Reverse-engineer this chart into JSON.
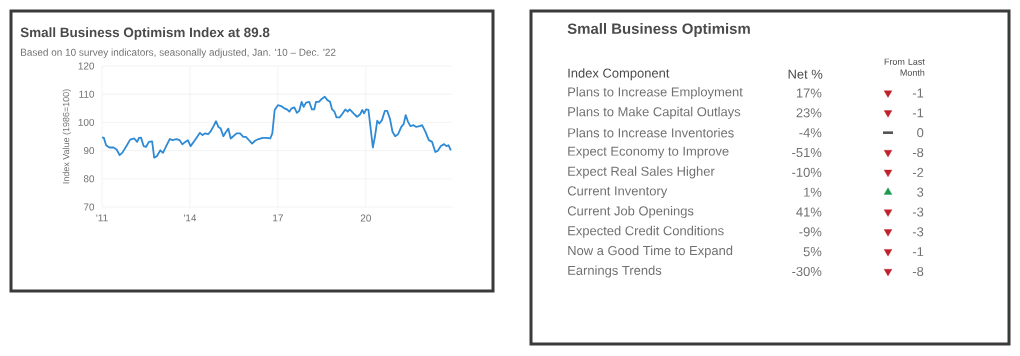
{
  "chart_data": [
    {
      "type": "line",
      "title": "Small Business Optimism Index at 89.8",
      "subtitle": "Based on 10 survey indicators, seasonally adjusted, Jan. '10 – Dec. '22",
      "ylabel": "Index Value (1986=100)",
      "color": "#2f8ad6",
      "x": [
        2011.0,
        2011.06,
        2011.14,
        2011.25,
        2011.39,
        2011.5,
        2011.6,
        2011.69,
        2011.85,
        2011.96,
        2012.1,
        2012.2,
        2012.26,
        2012.33,
        2012.42,
        2012.5,
        2012.6,
        2012.71,
        2012.78,
        2012.87,
        2012.99,
        2013.08,
        2013.19,
        2013.31,
        2013.4,
        2013.54,
        2013.65,
        2013.74,
        2013.83,
        2013.93,
        2014.02,
        2014.13,
        2014.25,
        2014.34,
        2014.43,
        2014.51,
        2014.62,
        2014.7,
        2014.79,
        2014.89,
        2014.97,
        2015.05,
        2015.14,
        2015.21,
        2015.31,
        2015.39,
        2015.48,
        2015.59,
        2015.71,
        2015.82,
        2015.91,
        2016.03,
        2016.12,
        2016.22,
        2016.34,
        2016.49,
        2016.62,
        2016.74,
        2016.81,
        2016.89,
        2017.0,
        2017.11,
        2017.22,
        2017.31,
        2017.39,
        2017.47,
        2017.56,
        2017.65,
        2017.73,
        2017.81,
        2017.88,
        2017.96,
        2018.07,
        2018.16,
        2018.24,
        2018.3,
        2018.4,
        2018.48,
        2018.6,
        2018.69,
        2018.78,
        2018.85,
        2018.93,
        2019.0,
        2019.11,
        2019.19,
        2019.3,
        2019.38,
        2019.45,
        2019.58,
        2019.7,
        2019.81,
        2019.88,
        2019.94,
        2020.01,
        2020.09,
        2020.15,
        2020.24,
        2020.31,
        2020.39,
        2020.46,
        2020.55,
        2020.65,
        2020.73,
        2020.82,
        2020.91,
        2021.0,
        2021.1,
        2021.21,
        2021.29,
        2021.36,
        2021.44,
        2021.52,
        2021.63,
        2021.72,
        2021.83,
        2021.92,
        2022.03,
        2022.15,
        2022.26,
        2022.37,
        2022.45,
        2022.56,
        2022.67,
        2022.75,
        2022.82,
        2022.9
      ],
      "values": [
        94.6,
        94.6,
        91.9,
        91.1,
        91.1,
        90.4,
        88.4,
        89.2,
        91.9,
        93.9,
        94.3,
        93.1,
        94.5,
        94.6,
        91.6,
        91.3,
        93.1,
        93.3,
        87.5,
        88.0,
        90.1,
        89.2,
        91.6,
        94.1,
        93.7,
        94.1,
        93.7,
        92.2,
        93.0,
        93.7,
        91.6,
        93.1,
        94.9,
        96.3,
        95.5,
        96.1,
        95.8,
        96.7,
        98.4,
        100.4,
        98.4,
        97.8,
        95.1,
        96.3,
        97.8,
        94.3,
        95.1,
        96.1,
        96.1,
        94.9,
        94.9,
        93.5,
        92.5,
        93.5,
        94.1,
        94.5,
        94.5,
        94.3,
        96.1,
        104.4,
        106.1,
        105.8,
        105.0,
        104.6,
        103.8,
        105.0,
        105.3,
        103.4,
        104.1,
        107.3,
        105.5,
        107.0,
        107.3,
        104.6,
        104.6,
        107.3,
        107.3,
        108.2,
        109.1,
        107.9,
        107.3,
        104.6,
        103.8,
        101.8,
        101.8,
        102.9,
        104.6,
        103.8,
        104.6,
        103.2,
        102.0,
        102.9,
        104.4,
        103.2,
        104.6,
        104.4,
        99.0,
        91.1,
        94.9,
        100.6,
        99.6,
        100.8,
        104.1,
        104.1,
        101.4,
        96.7,
        95.1,
        95.8,
        98.4,
        99.4,
        102.6,
        100.2,
        98.7,
        99.0,
        98.4,
        98.7,
        99.0,
        96.7,
        93.7,
        93.1,
        89.5,
        89.9,
        91.6,
        92.3,
        91.6,
        91.9,
        90.1
      ],
      "xlim": [
        2011,
        2022.94
      ],
      "xticks": [
        {
          "value": 2011,
          "label": "'11"
        },
        {
          "value": 2014,
          "label": "'14"
        },
        {
          "value": 2017,
          "label": "17"
        },
        {
          "value": 2020,
          "label": "20"
        }
      ],
      "ylim": [
        70,
        120
      ],
      "yticks": [
        70,
        80,
        90,
        100,
        110,
        120
      ],
      "grid": true
    },
    {
      "type": "other",
      "title": "Small Business Optimism",
      "ylabel": "Index Component",
      "categories": [
        "Plans to Increase Employment",
        "Plans to Make Capital Outlays",
        "Plans to Increase Inventories",
        "Expect Economy to Improve",
        "Expect Real Sales Higher",
        "Current Inventory",
        "Current Job Openings",
        "Expected Credit Conditions",
        "Now a Good Time to Expand",
        "Earnings Trends"
      ],
      "series": [
        {
          "name": "Net %",
          "color": "#707070",
          "values": [
            17,
            23,
            -4,
            -51,
            -10,
            1,
            41,
            -9,
            5,
            -30
          ],
          "value_labels": [
            "17%",
            "23%",
            "-4%",
            "-51%",
            "-10%",
            "1%",
            "41%",
            "-9%",
            "5%",
            "-30%"
          ]
        },
        {
          "name": "From Last Month",
          "colors": [
            "#c0202a",
            "#c0202a",
            "#555555",
            "#c0202a",
            "#c0202a",
            "#1e9a4c",
            "#c0202a",
            "#c0202a",
            "#c0202a",
            "#c0202a"
          ],
          "values": [
            -1,
            -1,
            0,
            -8,
            -2,
            3,
            -3,
            -3,
            -1,
            -8
          ],
          "value_labels": [
            "-1",
            "-1",
            "0",
            "-8",
            "-2",
            "3",
            "-3",
            "-3",
            "-1",
            "-8"
          ]
        }
      ]
    }
  ]
}
